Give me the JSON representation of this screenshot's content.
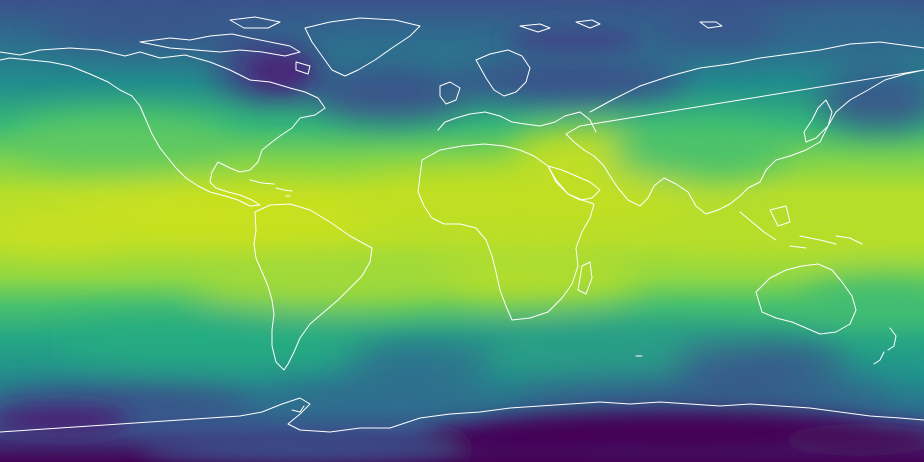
{
  "map": {
    "projection": "equirectangular",
    "colormap": "viridis",
    "palette": {
      "deep_purple": "#440154",
      "indigo": "#3b528b",
      "teal": "#21918c",
      "sea_green": "#35b779",
      "lime": "#9fda3a",
      "yellow_green": "#d2e21b",
      "yellow": "#e4e419"
    },
    "coastline_color": "#ffffff",
    "gridlines": false,
    "legend": "none"
  }
}
